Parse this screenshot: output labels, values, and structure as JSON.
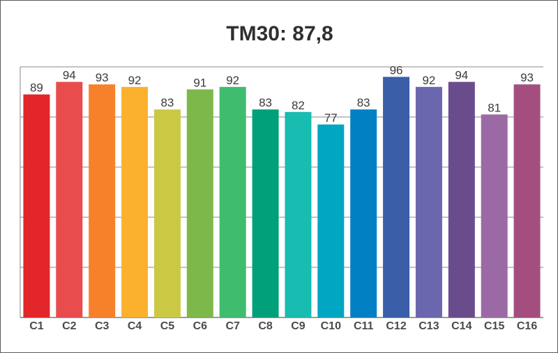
{
  "chart_data": {
    "type": "bar",
    "title": "TM30: 87,8",
    "xlabel": "",
    "ylabel": "",
    "ylim": [
      0,
      100
    ],
    "grid": true,
    "categories": [
      "C1",
      "C2",
      "C3",
      "C4",
      "C5",
      "C6",
      "C7",
      "C8",
      "C9",
      "C10",
      "C11",
      "C12",
      "C13",
      "C14",
      "C15",
      "C16"
    ],
    "values": [
      89,
      94,
      93,
      92,
      83,
      91,
      92,
      83,
      82,
      77,
      83,
      96,
      92,
      94,
      81,
      93
    ],
    "value_labels": [
      "89",
      "94",
      "93",
      "92",
      "83",
      "91",
      "92",
      "83",
      "82",
      "77",
      "83",
      "96",
      "92",
      "94",
      "81",
      "93"
    ],
    "colors": [
      "#e3262a",
      "#e84c4c",
      "#f7802b",
      "#fbb12e",
      "#cbc944",
      "#7db84a",
      "#3fbc6e",
      "#00a07a",
      "#18bcb0",
      "#00a6c2",
      "#0280c4",
      "#3a5ea8",
      "#6b67ae",
      "#6a4c8d",
      "#9b6aa5",
      "#a44e80"
    ]
  }
}
